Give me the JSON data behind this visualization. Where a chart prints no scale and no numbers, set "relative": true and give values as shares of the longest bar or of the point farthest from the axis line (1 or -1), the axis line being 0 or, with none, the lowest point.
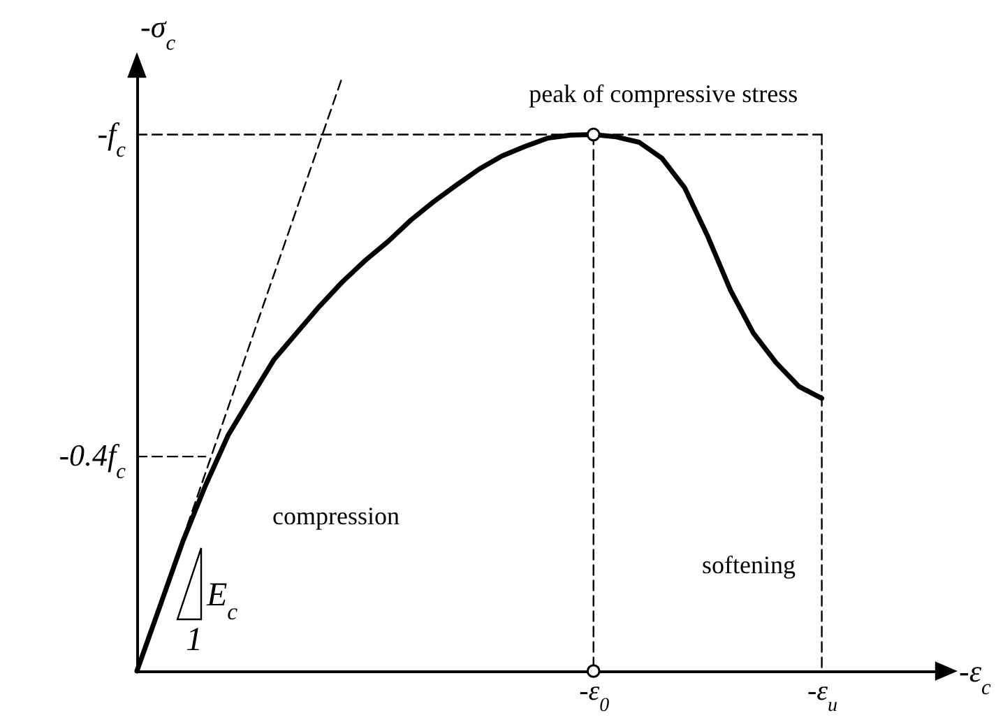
{
  "chart_data": {
    "type": "line",
    "relative": true,
    "xlabel": "-ε$_{c}$",
    "ylabel": "-σ$_{c}$",
    "categories": [
      null,
      null,
      null,
      null,
      null,
      null,
      null,
      null,
      null,
      null,
      null,
      null,
      null,
      null,
      null,
      null,
      null,
      null,
      null,
      null,
      "-ε$_{0}$",
      null,
      null,
      null,
      null,
      null,
      null,
      null,
      null,
      null,
      "-ε$_{u}$",
      null,
      null,
      null,
      null,
      null
    ],
    "series": [
      {
        "color": "#000000",
        "line_style": "solid",
        "values": [
          0,
          0.108,
          0.217,
          0.312,
          0.397,
          0.461,
          0.524,
          0.569,
          0.614,
          0.655,
          0.691,
          0.723,
          0.759,
          0.79,
          0.818,
          0.845,
          0.867,
          0.883,
          0.897,
          0.902,
          0.903,
          0.899,
          0.89,
          0.863,
          0.813,
          0.732,
          0.641,
          0.569,
          0.519,
          0.479,
          0.459,
          null,
          null,
          null,
          null,
          null
        ]
      },
      {
        "color": "#000000",
        "line_style": "dashed",
        "values": [
          0,
          0.111,
          0.222,
          0.333,
          0.444,
          0.556,
          0.667,
          0.778,
          0.889,
          1,
          null,
          null,
          null,
          null,
          null,
          null,
          null,
          null,
          null,
          null,
          null,
          null,
          null,
          null,
          null,
          null,
          null,
          null,
          null,
          null,
          null,
          null,
          null,
          null,
          null,
          null
        ]
      },
      {
        "color": "#000000",
        "line_style": "dashed",
        "values": [
          0.903,
          0.903,
          0.903,
          0.903,
          0.903,
          0.903,
          0.903,
          0.903,
          0.903,
          0.903,
          0.903,
          0.903,
          0.903,
          0.903,
          0.903,
          0.903,
          0.903,
          0.903,
          0.903,
          0.903,
          0.903,
          0.903,
          0.903,
          0.903,
          0.903,
          0.903,
          0.903,
          0.903,
          0.903,
          0.903,
          0.903,
          null,
          null,
          null,
          null,
          null
        ]
      },
      {
        "color": "#000000",
        "line_style": "dashed",
        "values": [
          0.361,
          0.361,
          0.361,
          0.361,
          null,
          null,
          null,
          null,
          null,
          null,
          null,
          null,
          null,
          null,
          null,
          null,
          null,
          null,
          null,
          null,
          null,
          null,
          null,
          null,
          null,
          null,
          null,
          null,
          null,
          null,
          null,
          null,
          null,
          null,
          null,
          null
        ]
      },
      {
        "color": "#000000",
        "line_style": "dashed",
        "x": [
          "-ε$_{0}$",
          "-ε$_{0}$"
        ],
        "values": [
          0.903,
          0
        ]
      },
      {
        "color": "#000000",
        "line_style": "dashed",
        "x": [
          "-ε$_{u}$",
          "-ε$_{u}$"
        ],
        "values": [
          0.903,
          0
        ]
      },
      {
        "type": "scatter",
        "color": "#000000",
        "marker": "circle",
        "x": [
          "-ε$_{0}$",
          "-ε$_{0}$"
        ],
        "values": [
          0.903,
          0
        ]
      }
    ],
    "annotations": [
      {
        "text": "peak of compressive stress",
        "x": "-ε$_{0}$",
        "y": 0.903
      },
      "compression",
      "softening",
      "E$_{c}$",
      "1",
      "-f$_{c}$",
      "-0.4f$_{c}$"
    ]
  }
}
